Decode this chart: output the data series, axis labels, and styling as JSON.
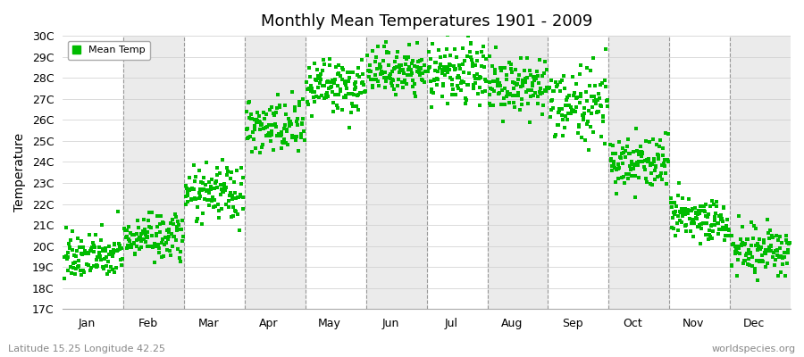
{
  "title": "Monthly Mean Temperatures 1901 - 2009",
  "ylabel": "Temperature",
  "dot_color": "#00BB00",
  "bg_color": "#FFFFFF",
  "strip_color": "#EBEBEB",
  "ylim": [
    17,
    30
  ],
  "yticks": [
    17,
    18,
    19,
    20,
    21,
    22,
    23,
    24,
    25,
    26,
    27,
    28,
    29,
    30
  ],
  "ytick_labels": [
    "17C",
    "18C",
    "19C",
    "20C",
    "21C",
    "22C",
    "23C",
    "24C",
    "25C",
    "26C",
    "27C",
    "28C",
    "29C",
    "30C"
  ],
  "months": [
    "Jan",
    "Feb",
    "Mar",
    "Apr",
    "May",
    "Jun",
    "Jul",
    "Aug",
    "Sep",
    "Oct",
    "Nov",
    "Dec"
  ],
  "month_mean_temps": [
    19.5,
    20.4,
    22.5,
    25.6,
    27.5,
    28.3,
    28.1,
    27.5,
    26.7,
    24.0,
    21.3,
    19.8
  ],
  "month_std_temps": [
    0.55,
    0.55,
    0.65,
    0.7,
    0.65,
    0.55,
    0.75,
    0.75,
    0.85,
    0.65,
    0.55,
    0.55
  ],
  "n_years": 109,
  "subtitle_left": "Latitude 15.25 Longitude 42.25",
  "subtitle_right": "worldspecies.org",
  "legend_label": "Mean Temp"
}
